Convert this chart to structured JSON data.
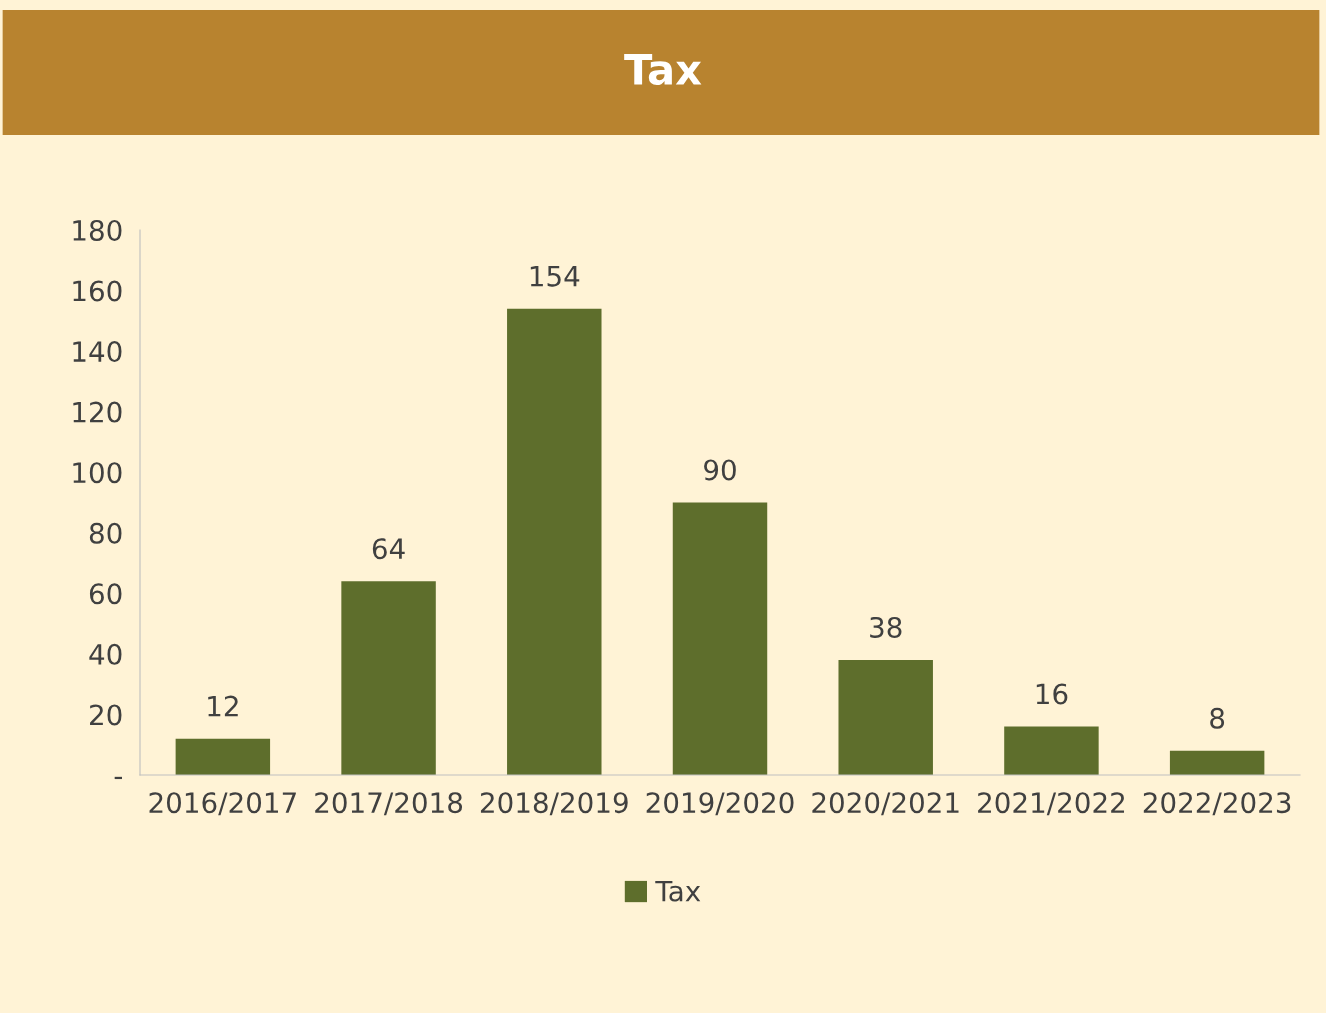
{
  "chart_data": {
    "type": "bar",
    "title": "Tax",
    "categories": [
      "2016/2017",
      "2017/2018",
      "2018/2019",
      "2019/2020",
      "2020/2021",
      "2021/2022",
      "2022/2023"
    ],
    "series": [
      {
        "name": "Tax",
        "color": "#5e6e2c",
        "values": [
          12,
          64,
          154,
          90,
          38,
          16,
          8
        ]
      }
    ],
    "ylim": [
      0,
      180
    ],
    "yticks": [
      {
        "value": 0,
        "label": "-"
      },
      20,
      40,
      60,
      80,
      100,
      120,
      140,
      160,
      180
    ],
    "data_labels": true,
    "grid": false,
    "legend": "bottom"
  }
}
